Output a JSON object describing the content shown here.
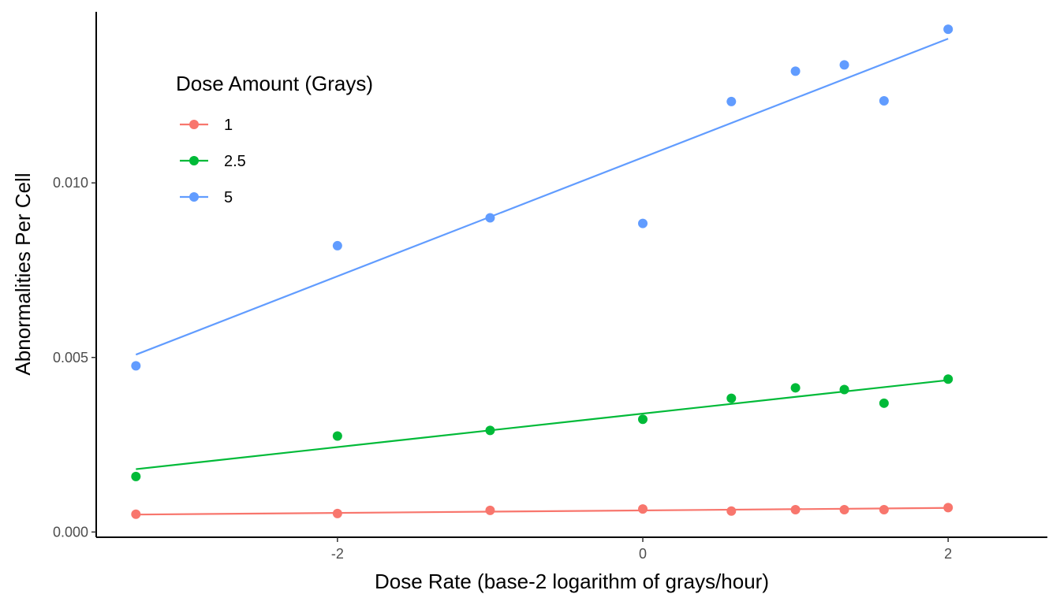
{
  "chart_data": {
    "type": "scatter",
    "xlabel": "Dose Rate (base-2 logarithm of grays/hour)",
    "ylabel": "Abnormalities Per Cell",
    "xlim": [
      -3.58,
      2.65
    ],
    "ylim": [
      -0.00015,
      0.0149
    ],
    "x_ticks": [
      -2,
      0,
      2
    ],
    "x_tick_labels": [
      "-2",
      "0",
      "2"
    ],
    "y_ticks": [
      0,
      0.005,
      0.01
    ],
    "y_tick_labels": [
      "0.000",
      "0.005",
      "0.010"
    ],
    "grid": false,
    "legend": {
      "title": "Dose Amount (Grays)",
      "placement": "top-left",
      "entries": [
        "1",
        "2.5",
        "5"
      ]
    },
    "series": [
      {
        "name": "1",
        "color": "#F8766D",
        "x": [
          -3.32,
          -2,
          -1,
          0,
          0.58,
          1,
          1.32,
          1.58,
          2
        ],
        "y": [
          0.00051,
          0.00053,
          0.00062,
          0.00066,
          0.0006,
          0.00064,
          0.00064,
          0.00064,
          0.0007
        ],
        "fit": {
          "x": [
            -3.32,
            2
          ],
          "y": [
            0.0005,
            0.00069
          ]
        }
      },
      {
        "name": "2.5",
        "color": "#00BA38",
        "x": [
          -3.32,
          -2,
          -1,
          0,
          0.58,
          1,
          1.32,
          1.58,
          2
        ],
        "y": [
          0.00159,
          0.00275,
          0.00291,
          0.00323,
          0.00383,
          0.00413,
          0.00408,
          0.00369,
          0.00438
        ],
        "fit": {
          "x": [
            -3.32,
            2
          ],
          "y": [
            0.0018,
            0.00435
          ]
        }
      },
      {
        "name": "5",
        "color": "#619CFF",
        "x": [
          -3.32,
          -2,
          -1,
          0,
          0.58,
          1,
          1.32,
          1.58,
          2
        ],
        "y": [
          0.00476,
          0.0082,
          0.009,
          0.00884,
          0.01233,
          0.0132,
          0.01338,
          0.01235,
          0.0144
        ],
        "fit": {
          "x": [
            -3.32,
            2
          ],
          "y": [
            0.00508,
            0.01413
          ]
        }
      }
    ]
  }
}
